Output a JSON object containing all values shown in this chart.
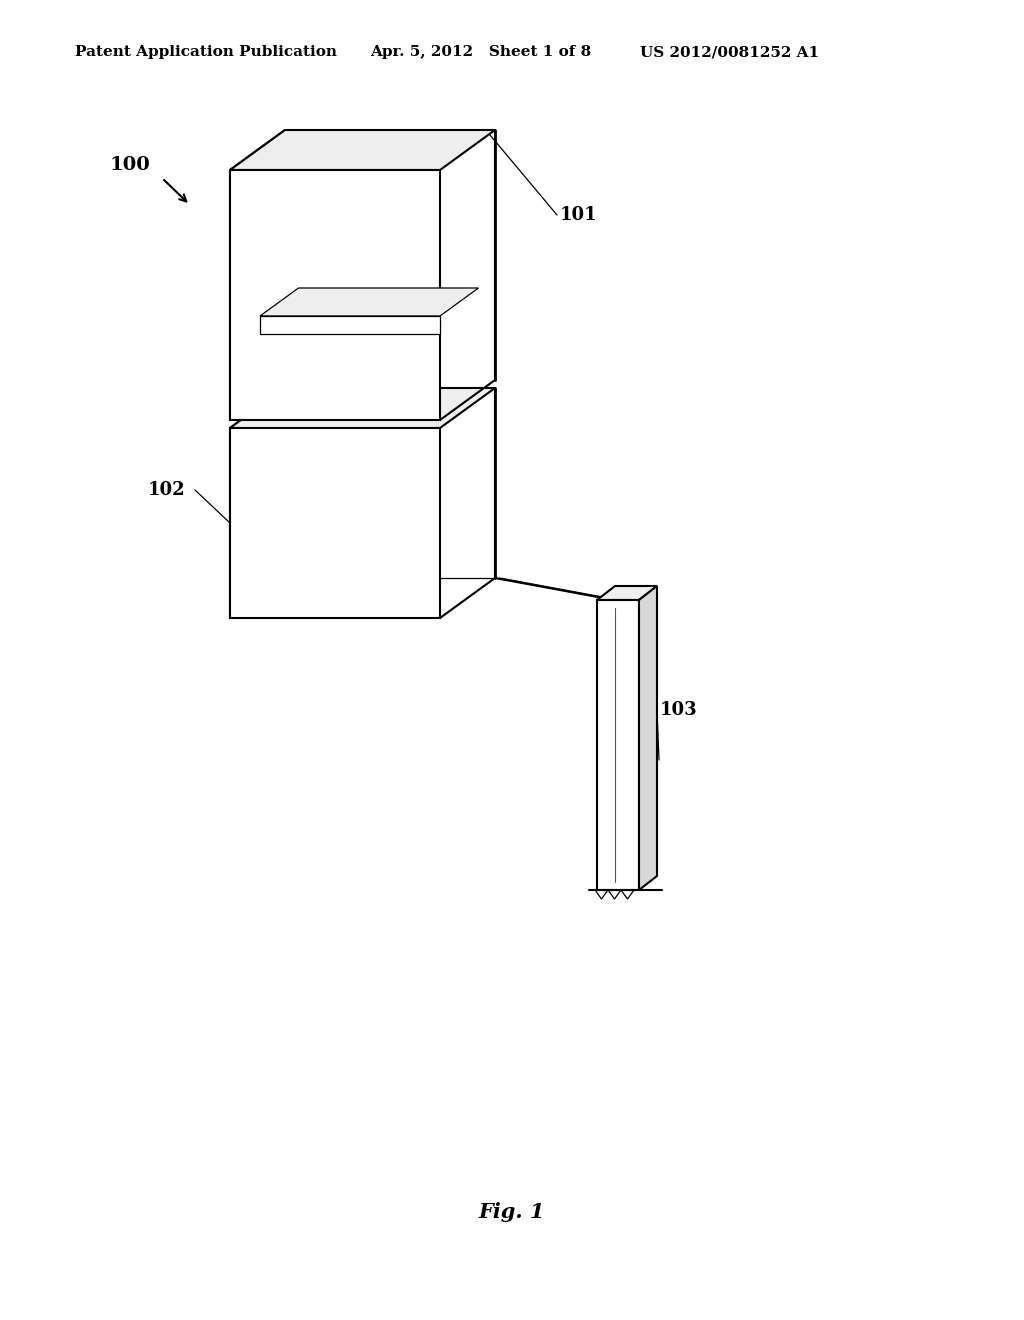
{
  "background_color": "#ffffff",
  "header_left": "Patent Application Publication",
  "header_mid": "Apr. 5, 2012   Sheet 1 of 8",
  "header_right": "US 2012/0081252 A1",
  "fig_label": "Fig. 1",
  "label_100": "100",
  "label_101": "101",
  "label_102": "102",
  "label_103": "103",
  "line_color": "#000000",
  "line_width": 1.5,
  "thin_line": 0.9,
  "face_white": "#ffffff",
  "face_light": "#eeeeee",
  "face_mid": "#d8d8d8",
  "face_dark": "#bbbbbb"
}
